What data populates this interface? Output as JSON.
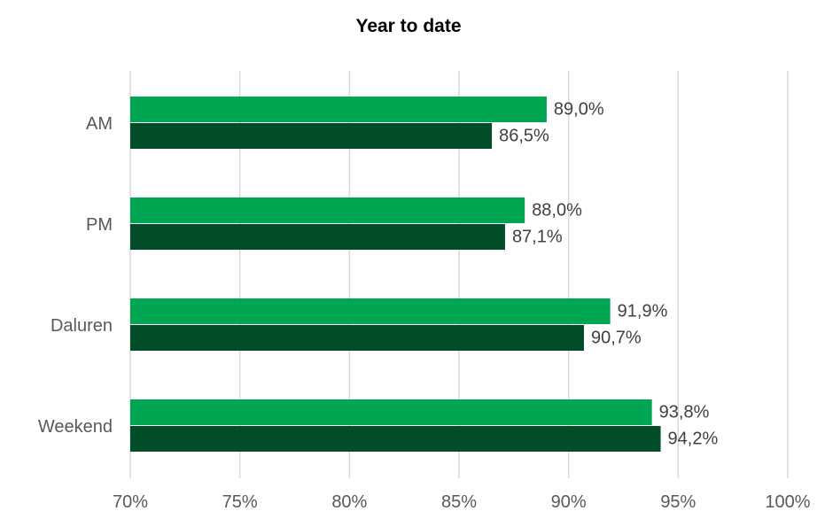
{
  "chart_data": {
    "type": "bar",
    "orientation": "horizontal",
    "title": "Year to date",
    "xlabel": "",
    "ylabel": "",
    "categories": [
      "AM",
      "PM",
      "Daluren",
      "Weekend"
    ],
    "series": [
      {
        "values": [
          89.0,
          88.0,
          91.9,
          93.8
        ],
        "labels": [
          "89,0%",
          "88,0%",
          "91,9%",
          "93,8%"
        ],
        "color": "#00a651"
      },
      {
        "values": [
          86.5,
          87.1,
          90.7,
          94.2
        ],
        "labels": [
          "86,5%",
          "87,1%",
          "90,7%",
          "94,2%"
        ],
        "color": "#004d27"
      }
    ],
    "xlim": [
      70,
      100
    ],
    "x_ticks": [
      70,
      75,
      80,
      85,
      90,
      95,
      100
    ],
    "x_tick_labels": [
      "70%",
      "75%",
      "80%",
      "85%",
      "90%",
      "95%",
      "100%"
    ],
    "grid": "vertical",
    "legend": "none"
  }
}
